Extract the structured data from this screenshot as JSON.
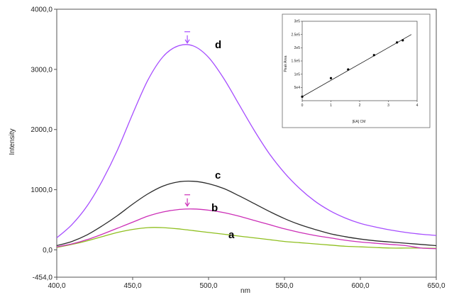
{
  "chart_data": [
    {
      "type": "line",
      "title": "",
      "xlabel": "nm",
      "ylabel": "Intensity",
      "xlim": [
        400,
        650
      ],
      "ylim": [
        -454,
        4000
      ],
      "x_ticks": [
        "400,0",
        "450,0",
        "500,0",
        "550,0",
        "600,0",
        "650,0"
      ],
      "y_ticks": [
        "-454,0",
        "0,0",
        "1000,0",
        "2000,0",
        "3000,0",
        "4000,0"
      ],
      "grid": false,
      "series": [
        {
          "name": "a",
          "color": "#8fbf1f",
          "x": [
            400,
            410,
            420,
            430,
            440,
            450,
            460,
            470,
            480,
            490,
            500,
            510,
            520,
            530,
            540,
            550,
            560,
            570,
            580,
            590,
            600,
            610,
            620,
            630,
            640,
            650
          ],
          "y": [
            40,
            90,
            150,
            220,
            290,
            340,
            370,
            370,
            350,
            320,
            290,
            260,
            230,
            200,
            170,
            140,
            120,
            100,
            80,
            60,
            50,
            40,
            30,
            30,
            30,
            25
          ]
        },
        {
          "name": "b",
          "color": "#cc2fb7",
          "x": [
            400,
            410,
            420,
            430,
            440,
            450,
            460,
            470,
            480,
            490,
            500,
            510,
            520,
            530,
            540,
            550,
            560,
            570,
            580,
            590,
            600,
            610,
            620,
            630,
            640,
            650
          ],
          "y": [
            50,
            100,
            170,
            260,
            360,
            460,
            560,
            630,
            670,
            680,
            660,
            620,
            560,
            490,
            420,
            350,
            290,
            240,
            200,
            160,
            130,
            110,
            90,
            70,
            30,
            20
          ]
        },
        {
          "name": "c",
          "color": "#2a2a2a",
          "x": [
            400,
            410,
            420,
            430,
            440,
            450,
            460,
            470,
            480,
            490,
            500,
            510,
            520,
            530,
            540,
            550,
            560,
            570,
            580,
            590,
            600,
            610,
            620,
            630,
            640,
            650
          ],
          "y": [
            70,
            140,
            250,
            400,
            570,
            760,
            930,
            1060,
            1130,
            1140,
            1100,
            1020,
            900,
            770,
            640,
            520,
            420,
            340,
            270,
            220,
            180,
            150,
            130,
            110,
            90,
            70
          ]
        },
        {
          "name": "d",
          "color": "#a64dff",
          "x": [
            400,
            410,
            420,
            430,
            440,
            450,
            460,
            470,
            480,
            490,
            500,
            510,
            520,
            530,
            540,
            550,
            560,
            570,
            580,
            590,
            600,
            610,
            620,
            630,
            640,
            650
          ],
          "y": [
            200,
            420,
            730,
            1150,
            1660,
            2260,
            2820,
            3210,
            3390,
            3390,
            3200,
            2850,
            2420,
            1990,
            1600,
            1280,
            1020,
            810,
            650,
            530,
            440,
            380,
            330,
            290,
            260,
            240
          ]
        }
      ],
      "annotations": [
        "a",
        "b",
        "c",
        "d"
      ],
      "inset": {
        "type": "scatter",
        "xlabel": "[EA] CM",
        "ylabel": "Peak Area",
        "xlim": [
          0,
          4
        ],
        "ylim": [
          0,
          300000
        ],
        "x_ticks": [
          "0",
          "1",
          "2",
          "3",
          "4"
        ],
        "y_ticks": [
          "5e4",
          "1e5",
          "1.5e5",
          "2e5",
          "2.5e5",
          "3e5"
        ],
        "x": [
          0,
          1,
          1.6,
          2.5,
          3.3,
          3.5
        ],
        "y": [
          15000,
          85000,
          118000,
          172000,
          220000,
          228000
        ],
        "fit_line": {
          "x": [
            0,
            3.8
          ],
          "y": [
            15000,
            250000
          ]
        }
      }
    }
  ]
}
